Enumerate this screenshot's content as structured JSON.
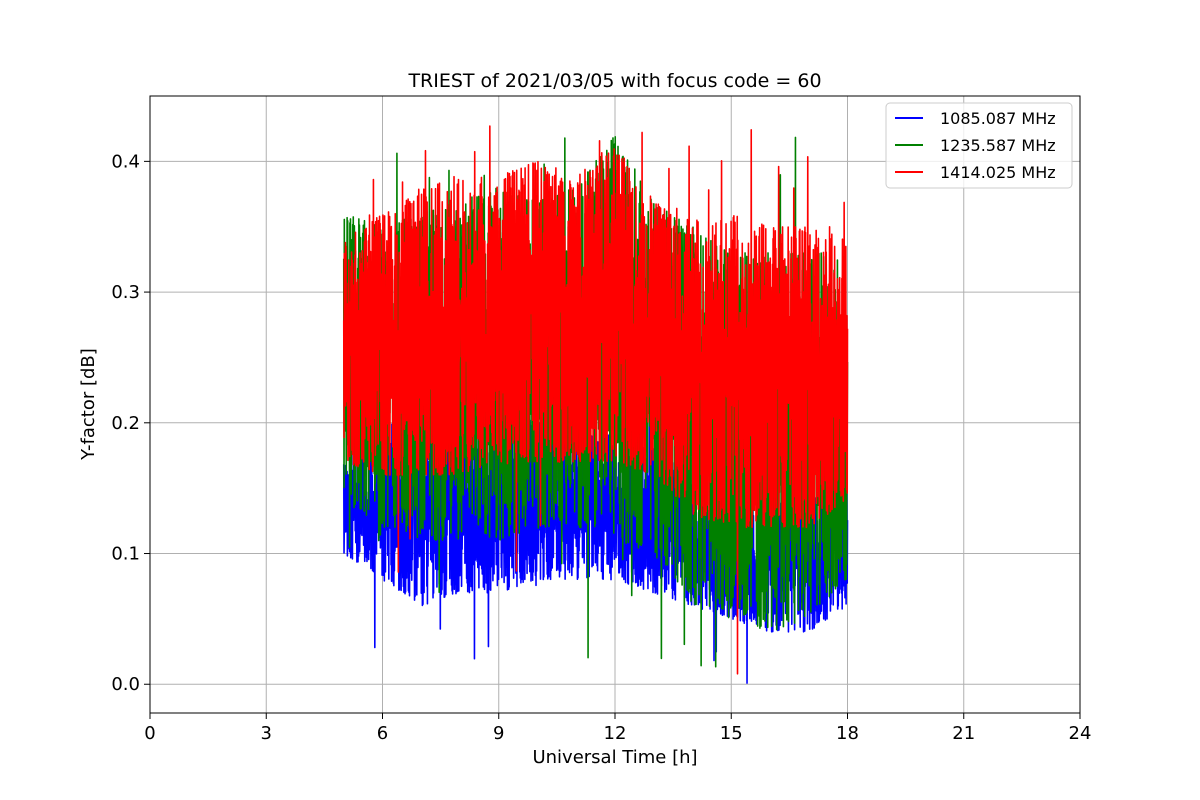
{
  "chart_data": {
    "type": "line",
    "title": "TRIEST of 2021/03/05 with focus code = 60",
    "xlabel": "Universal Time [h]",
    "ylabel": "Y-factor [dB]",
    "xlim": [
      0,
      24
    ],
    "ylim": [
      -0.022,
      0.45
    ],
    "xticks": [
      0,
      3,
      6,
      9,
      12,
      15,
      18,
      21,
      24
    ],
    "xtick_labels": [
      "0",
      "3",
      "6",
      "9",
      "12",
      "15",
      "18",
      "21",
      "24"
    ],
    "yticks": [
      0.0,
      0.1,
      0.2,
      0.3,
      0.4
    ],
    "ytick_labels": [
      "0.0",
      "0.1",
      "0.2",
      "0.3",
      "0.4"
    ],
    "grid": true,
    "legend_position": "top-right",
    "series": [
      {
        "name": "1085.087 MHz",
        "color": "#0000ff",
        "x_range": [
          5.0,
          18.0
        ],
        "x": [
          5.0,
          6.0,
          7.0,
          8.0,
          9.0,
          10.0,
          11.0,
          12.0,
          13.0,
          14.0,
          15.0,
          16.0,
          17.0,
          18.0
        ],
        "low": [
          0.1,
          0.08,
          0.06,
          0.07,
          0.07,
          0.08,
          0.08,
          0.08,
          0.07,
          0.06,
          0.05,
          0.04,
          0.04,
          0.06
        ],
        "high": [
          0.17,
          0.2,
          0.2,
          0.2,
          0.21,
          0.2,
          0.2,
          0.19,
          0.18,
          0.16,
          0.15,
          0.14,
          0.14,
          0.16
        ],
        "min": 0.0,
        "max": 0.21
      },
      {
        "name": "1235.587 MHz",
        "color": "#008000",
        "x_range": [
          5.0,
          18.0
        ],
        "x": [
          5.0,
          6.0,
          7.0,
          8.0,
          9.0,
          10.0,
          11.0,
          12.0,
          13.0,
          14.0,
          15.0,
          16.0,
          17.0,
          18.0
        ],
        "low": [
          0.14,
          0.12,
          0.11,
          0.11,
          0.11,
          0.12,
          0.12,
          0.11,
          0.1,
          0.06,
          0.05,
          0.04,
          0.05,
          0.08
        ],
        "high": [
          0.36,
          0.35,
          0.36,
          0.37,
          0.38,
          0.37,
          0.38,
          0.42,
          0.37,
          0.35,
          0.33,
          0.33,
          0.33,
          0.33
        ],
        "min": 0.0,
        "max": 0.425
      },
      {
        "name": "1414.025 MHz",
        "color": "#ff0000",
        "x_range": [
          5.0,
          18.0
        ],
        "x": [
          5.0,
          6.0,
          7.0,
          8.0,
          9.0,
          10.0,
          11.0,
          12.0,
          13.0,
          14.0,
          15.0,
          16.0,
          17.0,
          18.0
        ],
        "low": [
          0.17,
          0.16,
          0.16,
          0.16,
          0.17,
          0.17,
          0.17,
          0.17,
          0.16,
          0.13,
          0.12,
          0.12,
          0.12,
          0.14
        ],
        "high": [
          0.34,
          0.36,
          0.38,
          0.39,
          0.39,
          0.4,
          0.39,
          0.41,
          0.37,
          0.36,
          0.36,
          0.35,
          0.35,
          0.35
        ],
        "min": 0.0,
        "max": 0.43
      }
    ]
  }
}
